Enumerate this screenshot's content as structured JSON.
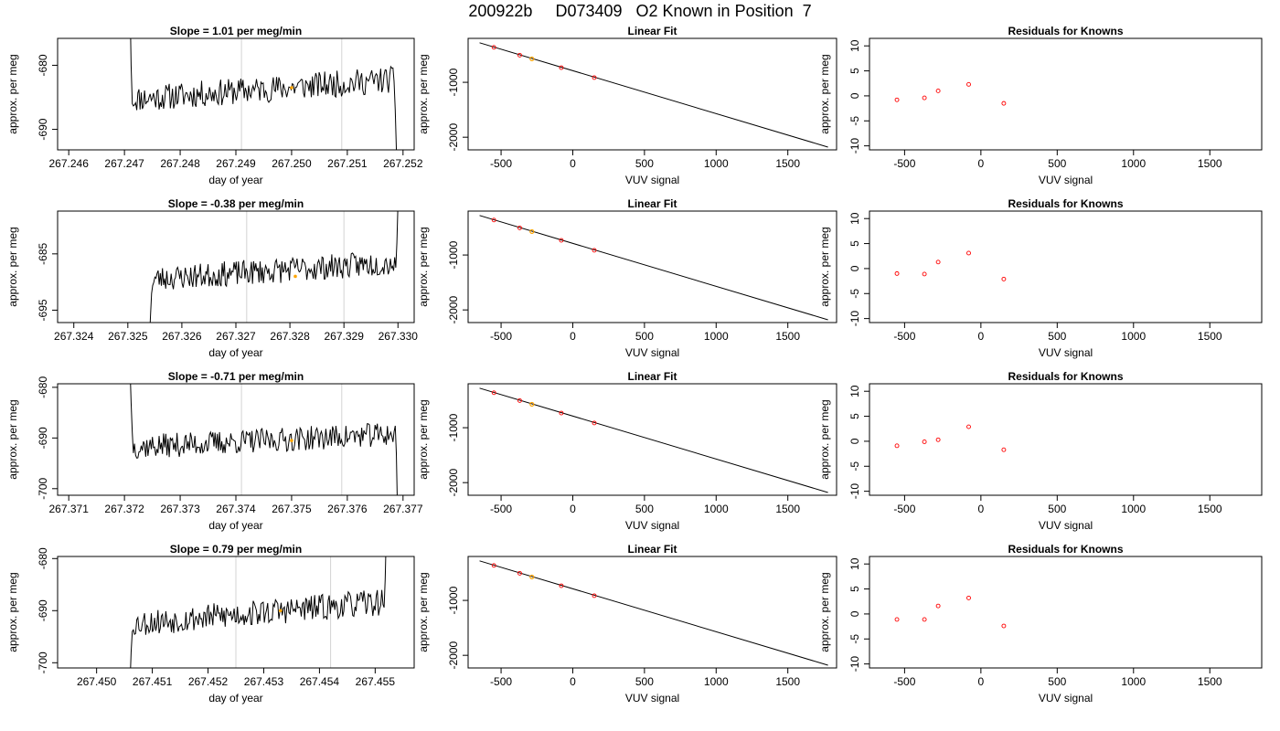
{
  "main_title": "200922b     D073409   O2 Known in Position  7",
  "colors": {
    "line": "#000000",
    "gridline": "#d3d3d3",
    "highlight": "#ffa500",
    "residual_point": "#ff0000",
    "fit_point": "#ff0000"
  },
  "chart_data": [
    {
      "row": 1,
      "panel": "time",
      "type": "line",
      "title": "Slope =  1.01  per meg/min",
      "xlabel": "day of year",
      "ylabel": "approx. per meg",
      "xlim": [
        267.2458,
        267.2522
      ],
      "ylim": [
        -693.2,
        -675.8
      ],
      "xticks": [
        267.246,
        267.247,
        267.248,
        267.249,
        267.25,
        267.251,
        267.252
      ],
      "xtick_labels": [
        "267.246",
        "267.247",
        "267.248",
        "267.249",
        "267.250",
        "267.251",
        "267.252"
      ],
      "yticks": [
        -690,
        -680
      ],
      "ytick_labels": [
        "-690",
        "-680"
      ],
      "vlines": [
        267.2491,
        267.2509
      ],
      "t_start": 267.2471,
      "t_end": 267.2519,
      "n": 240,
      "seed": 11,
      "baseline_start": -685.3,
      "baseline_end": -682.2,
      "noise": 1.3,
      "head": [
        -670,
        -680,
        -686
      ],
      "tail": [
        -687,
        -693,
        -700
      ],
      "highlight": [
        267.25,
        -683.5
      ]
    },
    {
      "row": 1,
      "panel": "fit",
      "type": "scatter+line",
      "title": "Linear Fit",
      "xlabel": "VUV signal",
      "ylabel": "approx. per meg",
      "xlim": [
        -730,
        1840
      ],
      "ylim": [
        -2230,
        -200
      ],
      "xticks": [
        -500,
        0,
        500,
        1000,
        1500
      ],
      "xtick_labels": [
        "-500",
        "0",
        "500",
        "1000",
        "1500"
      ],
      "yticks": [
        -2000,
        -1000
      ],
      "ytick_labels": [
        "-2000",
        "-1000"
      ],
      "line": [
        [
          -650,
          -280
        ],
        [
          1780,
          -2180
        ]
      ],
      "points": [
        [
          -550,
          -363
        ],
        [
          -370,
          -506
        ],
        [
          -80,
          -733
        ],
        [
          150,
          -914
        ]
      ],
      "highlight": [
        [
          -285,
          -573
        ]
      ]
    },
    {
      "row": 1,
      "panel": "resid",
      "type": "scatter",
      "title": "Residuals for Knowns",
      "xlabel": "VUV signal",
      "ylabel": "approx. per meg",
      "xlim": [
        -730,
        1840
      ],
      "ylim": [
        -10.8,
        11.5
      ],
      "xticks": [
        -500,
        0,
        500,
        1000,
        1500
      ],
      "xtick_labels": [
        "-500",
        "0",
        "500",
        "1000",
        "1500"
      ],
      "yticks": [
        -10,
        -5,
        0,
        5,
        10
      ],
      "ytick_labels": [
        "-10",
        "-5",
        "0",
        "5",
        "10"
      ],
      "points": [
        [
          -550,
          -0.8
        ],
        [
          -370,
          -0.4
        ],
        [
          -280,
          1.0
        ],
        [
          -80,
          2.3
        ],
        [
          150,
          -1.5
        ]
      ]
    },
    {
      "row": 2,
      "panel": "time",
      "type": "line",
      "title": "Slope =  -0.38  per meg/min",
      "xlabel": "day of year",
      "ylabel": "approx. per meg",
      "xlim": [
        267.3237,
        267.3303
      ],
      "ylim": [
        -697.2,
        -677.4
      ],
      "xticks": [
        267.324,
        267.325,
        267.326,
        267.327,
        267.328,
        267.329,
        267.33
      ],
      "xtick_labels": [
        "267.324",
        "267.325",
        "267.326",
        "267.327",
        "267.328",
        "267.329",
        "267.330"
      ],
      "yticks": [
        -695,
        -685
      ],
      "ytick_labels": [
        "-695",
        "-685"
      ],
      "vlines": [
        267.3272,
        267.329
      ],
      "t_start": 267.3254,
      "t_end": 267.33,
      "n": 230,
      "seed": 23,
      "baseline_start": -689.5,
      "baseline_end": -686.5,
      "noise": 1.4,
      "head": [
        -700,
        -696,
        -692
      ],
      "tail": [
        -683,
        -676
      ],
      "highlight": [
        267.3281,
        -689.0
      ]
    },
    {
      "row": 2,
      "panel": "fit",
      "type": "scatter+line",
      "title": "Linear Fit",
      "xlabel": "VUV signal",
      "ylabel": "approx. per meg",
      "xlim": [
        -730,
        1840
      ],
      "ylim": [
        -2230,
        -200
      ],
      "xticks": [
        -500,
        0,
        500,
        1000,
        1500
      ],
      "xtick_labels": [
        "-500",
        "0",
        "500",
        "1000",
        "1500"
      ],
      "yticks": [
        -2000,
        -1000
      ],
      "ytick_labels": [
        "-2000",
        "-1000"
      ],
      "line": [
        [
          -650,
          -280
        ],
        [
          1780,
          -2180
        ]
      ],
      "points": [
        [
          -550,
          -363
        ],
        [
          -370,
          -506
        ],
        [
          -80,
          -733
        ],
        [
          150,
          -914
        ]
      ],
      "highlight": [
        [
          -285,
          -573
        ]
      ]
    },
    {
      "row": 2,
      "panel": "resid",
      "type": "scatter",
      "title": "Residuals for Knowns",
      "xlabel": "VUV signal",
      "ylabel": "approx. per meg",
      "xlim": [
        -730,
        1840
      ],
      "ylim": [
        -10.8,
        11.5
      ],
      "xticks": [
        -500,
        0,
        500,
        1000,
        1500
      ],
      "xtick_labels": [
        "-500",
        "0",
        "500",
        "1000",
        "1500"
      ],
      "yticks": [
        -10,
        -5,
        0,
        5,
        10
      ],
      "ytick_labels": [
        "-10",
        "-5",
        "0",
        "5",
        "10"
      ],
      "points": [
        [
          -550,
          -1.0
        ],
        [
          -370,
          -1.1
        ],
        [
          -280,
          1.3
        ],
        [
          -80,
          3.1
        ],
        [
          150,
          -2.1
        ]
      ]
    },
    {
      "row": 3,
      "panel": "time",
      "type": "line",
      "title": "Slope =  -0.71  per meg/min",
      "xlabel": "day of year",
      "ylabel": "approx. per meg",
      "xlim": [
        267.3708,
        267.3772
      ],
      "ylim": [
        -701.3,
        -679.3
      ],
      "xticks": [
        267.371,
        267.372,
        267.373,
        267.374,
        267.375,
        267.376,
        267.377
      ],
      "xtick_labels": [
        "267.371",
        "267.372",
        "267.373",
        "267.374",
        "267.375",
        "267.376",
        "267.377"
      ],
      "yticks": [
        -700,
        -690,
        -680
      ],
      "ytick_labels": [
        "-700",
        "-690",
        "-680"
      ],
      "vlines": [
        267.3741,
        267.3759
      ],
      "t_start": 267.3721,
      "t_end": 267.3769,
      "n": 240,
      "seed": 37,
      "baseline_start": -691.8,
      "baseline_end": -689.2,
      "noise": 1.5,
      "head": [
        -676,
        -683,
        -689
      ],
      "tail": [
        -693,
        -704
      ],
      "highlight": [
        267.375,
        -690.5
      ]
    },
    {
      "row": 3,
      "panel": "fit",
      "type": "scatter+line",
      "title": "Linear Fit",
      "xlabel": "VUV signal",
      "ylabel": "approx. per meg",
      "xlim": [
        -730,
        1840
      ],
      "ylim": [
        -2230,
        -200
      ],
      "xticks": [
        -500,
        0,
        500,
        1000,
        1500
      ],
      "xtick_labels": [
        "-500",
        "0",
        "500",
        "1000",
        "1500"
      ],
      "yticks": [
        -2000,
        -1000
      ],
      "ytick_labels": [
        "-2000",
        "-1000"
      ],
      "line": [
        [
          -650,
          -280
        ],
        [
          1780,
          -2180
        ]
      ],
      "points": [
        [
          -550,
          -363
        ],
        [
          -370,
          -506
        ],
        [
          -80,
          -733
        ],
        [
          150,
          -914
        ]
      ],
      "highlight": [
        [
          -285,
          -573
        ]
      ]
    },
    {
      "row": 3,
      "panel": "resid",
      "type": "scatter",
      "title": "Residuals for Knowns",
      "xlabel": "VUV signal",
      "ylabel": "approx. per meg",
      "xlim": [
        -730,
        1840
      ],
      "ylim": [
        -10.8,
        11.5
      ],
      "xticks": [
        -500,
        0,
        500,
        1000,
        1500
      ],
      "xtick_labels": [
        "-500",
        "0",
        "500",
        "1000",
        "1500"
      ],
      "yticks": [
        -10,
        -5,
        0,
        5,
        10
      ],
      "ytick_labels": [
        "-10",
        "-5",
        "0",
        "5",
        "10"
      ],
      "points": [
        [
          -550,
          -0.9
        ],
        [
          -370,
          -0.1
        ],
        [
          -280,
          0.3
        ],
        [
          -80,
          2.9
        ],
        [
          150,
          -1.7
        ]
      ]
    },
    {
      "row": 4,
      "panel": "time",
      "type": "line",
      "title": "Slope =  0.79  per meg/min",
      "xlabel": "day of year",
      "ylabel": "approx. per meg",
      "xlim": [
        267.4493,
        267.4557
      ],
      "ylim": [
        -701.0,
        -679.6
      ],
      "xticks": [
        267.45,
        267.451,
        267.452,
        267.453,
        267.454,
        267.455
      ],
      "xtick_labels": [
        "267.450",
        "267.451",
        "267.452",
        "267.453",
        "267.454",
        "267.455"
      ],
      "yticks": [
        -700,
        -690,
        -680
      ],
      "ytick_labels": [
        "-700",
        "-690",
        "-680"
      ],
      "vlines": [
        267.4525,
        267.4542
      ],
      "t_start": 267.4506,
      "t_end": 267.4552,
      "n": 230,
      "seed": 53,
      "baseline_start": -692.5,
      "baseline_end": -688.3,
      "noise": 1.6,
      "head": [
        -704,
        -698,
        -694
      ],
      "tail": [
        -684,
        -675
      ],
      "highlight": [
        267.4533,
        -690.0
      ]
    },
    {
      "row": 4,
      "panel": "fit",
      "type": "scatter+line",
      "title": "Linear Fit",
      "xlabel": "VUV signal",
      "ylabel": "approx. per meg",
      "xlim": [
        -730,
        1840
      ],
      "ylim": [
        -2230,
        -200
      ],
      "xticks": [
        -500,
        0,
        500,
        1000,
        1500
      ],
      "xtick_labels": [
        "-500",
        "0",
        "500",
        "1000",
        "1500"
      ],
      "yticks": [
        -2000,
        -1000
      ],
      "ytick_labels": [
        "-2000",
        "-1000"
      ],
      "line": [
        [
          -650,
          -280
        ],
        [
          1780,
          -2180
        ]
      ],
      "points": [
        [
          -550,
          -363
        ],
        [
          -370,
          -506
        ],
        [
          -80,
          -733
        ],
        [
          150,
          -914
        ]
      ],
      "highlight": [
        [
          -285,
          -573
        ]
      ]
    },
    {
      "row": 4,
      "panel": "resid",
      "type": "scatter",
      "title": "Residuals for Knowns",
      "xlabel": "VUV signal",
      "ylabel": "approx. per meg",
      "xlim": [
        -730,
        1840
      ],
      "ylim": [
        -10.8,
        11.5
      ],
      "xticks": [
        -500,
        0,
        500,
        1000,
        1500
      ],
      "xtick_labels": [
        "-500",
        "0",
        "500",
        "1000",
        "1500"
      ],
      "yticks": [
        -10,
        -5,
        0,
        5,
        10
      ],
      "ytick_labels": [
        "-10",
        "-5",
        "0",
        "5",
        "10"
      ],
      "points": [
        [
          -550,
          -1.1
        ],
        [
          -370,
          -1.1
        ],
        [
          -280,
          1.6
        ],
        [
          -80,
          3.2
        ],
        [
          150,
          -2.4
        ]
      ]
    }
  ]
}
